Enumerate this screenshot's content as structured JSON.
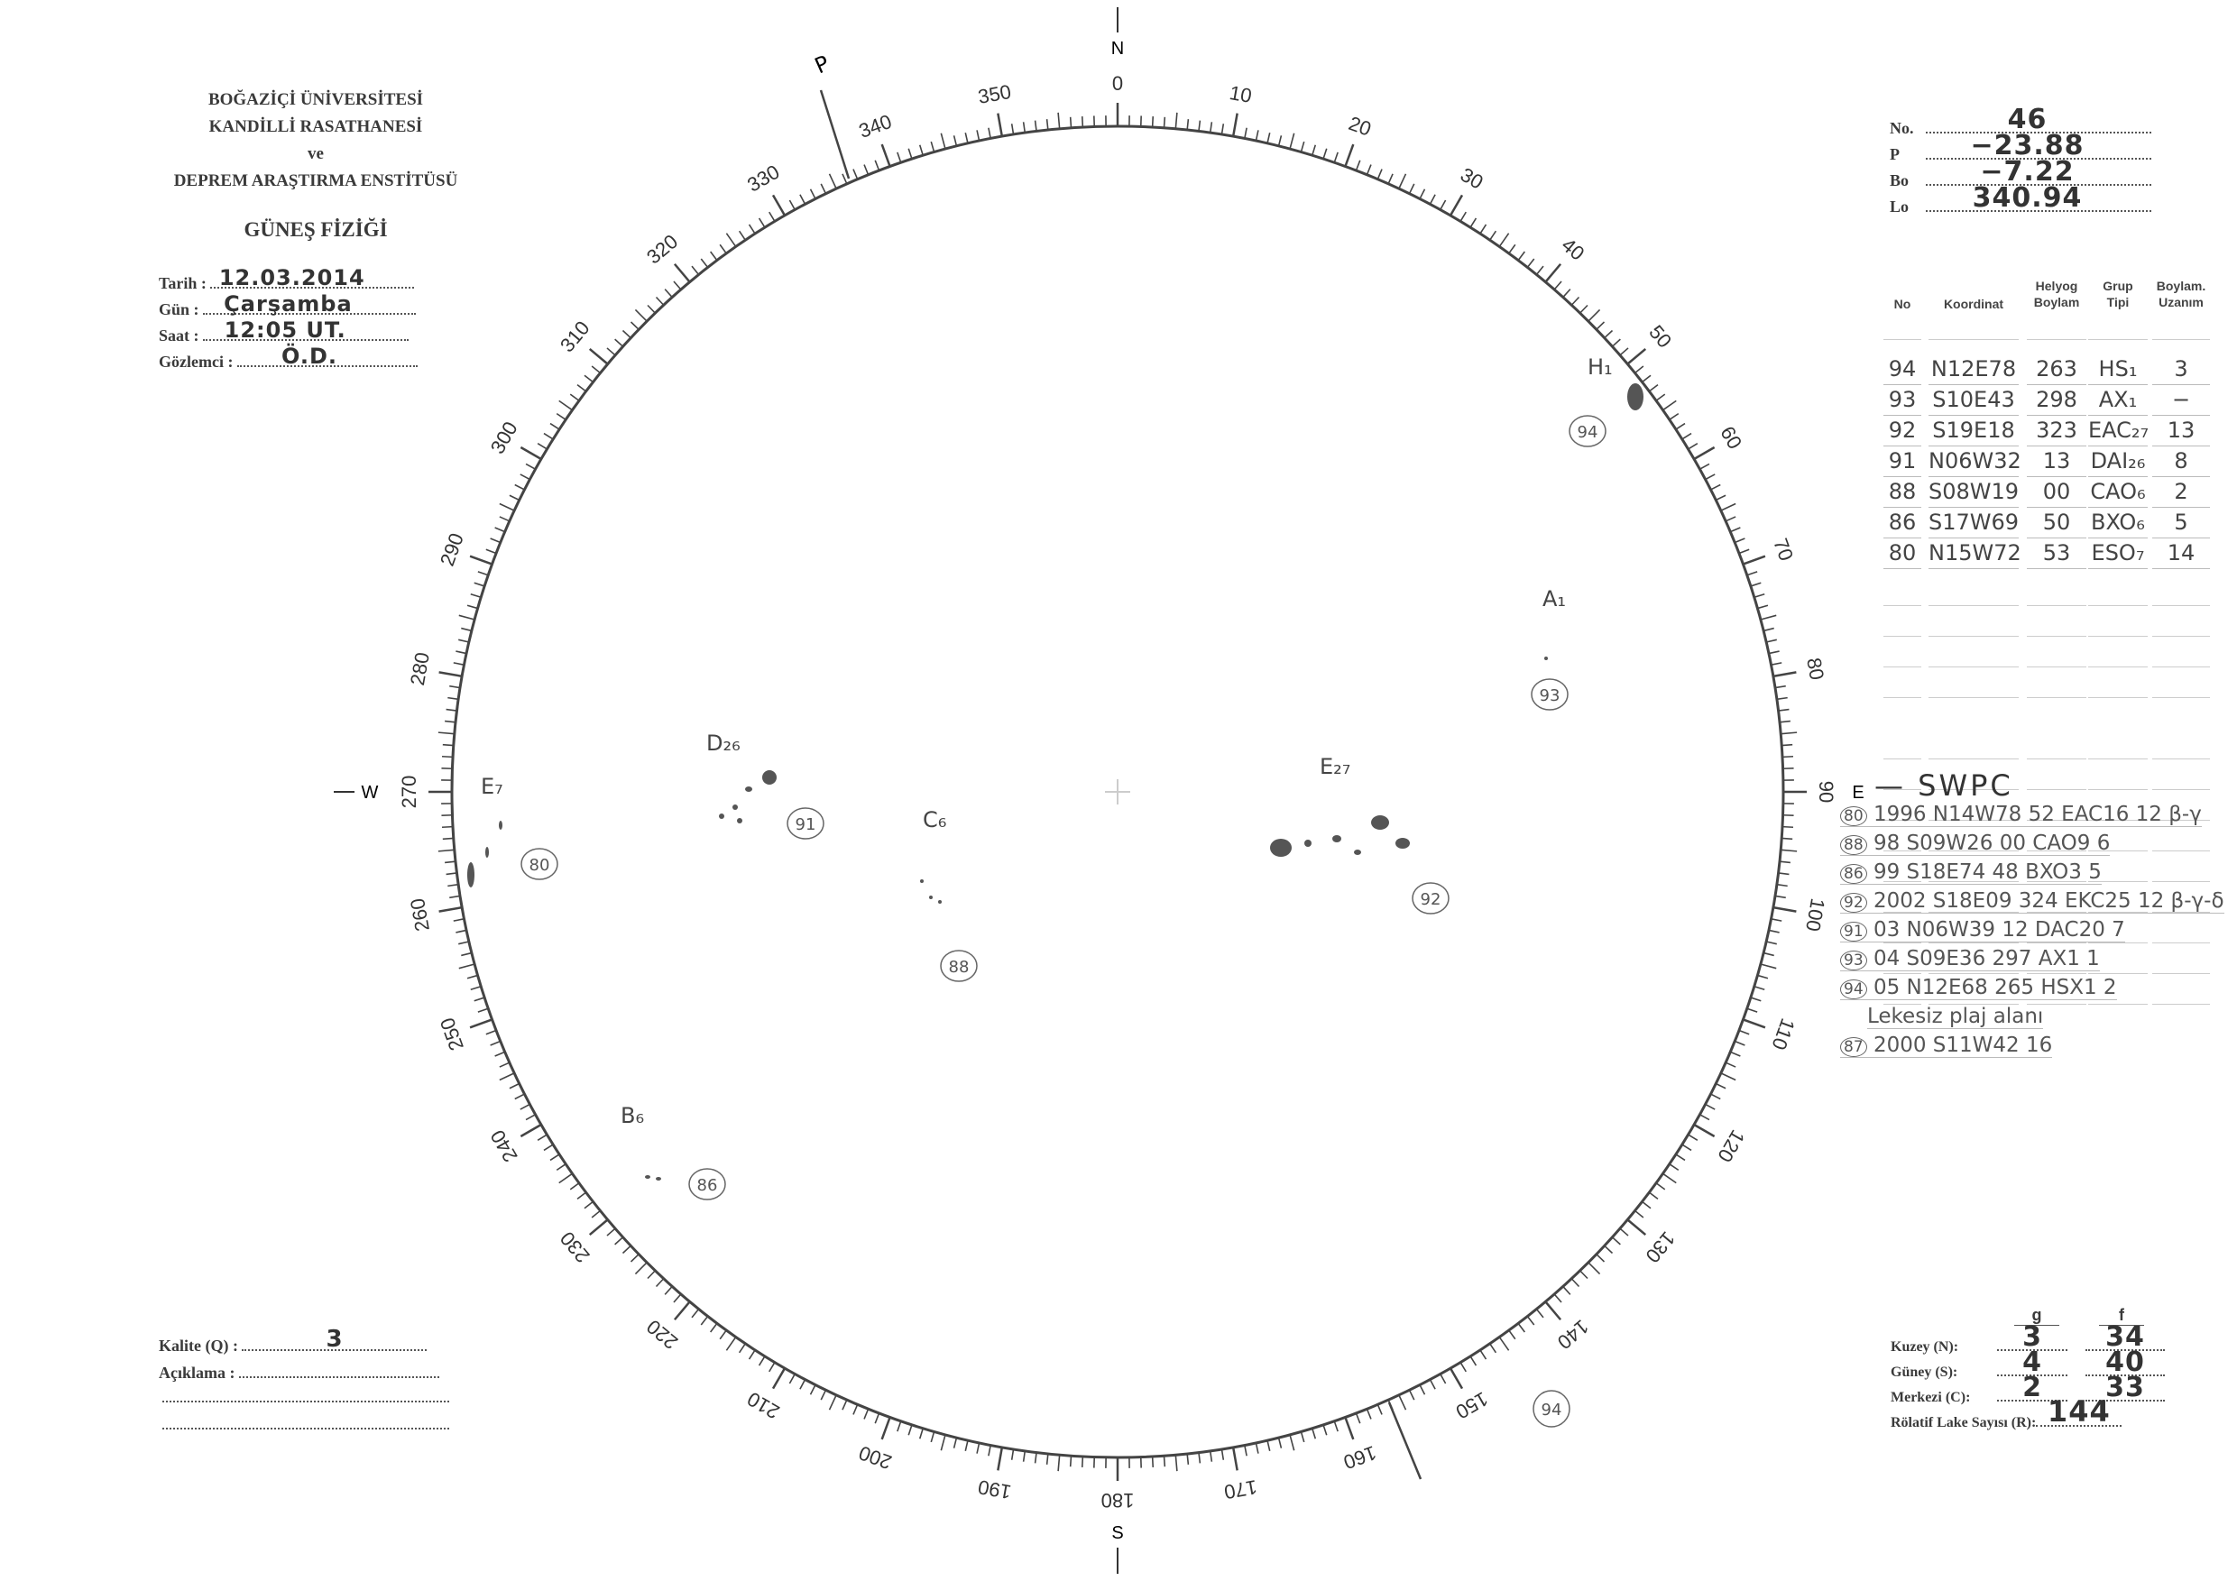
{
  "header": {
    "lines": [
      "BOĞAZİÇİ ÜNİVERSİTESİ",
      "KANDİLLİ RASATHANESİ",
      "ve",
      "DEPREM ARAŞTIRMA ENSTİTÜSÜ"
    ],
    "title": "GÜNEŞ FİZİĞİ"
  },
  "info": [
    {
      "label": "Tarih :",
      "value": "12.03.2014"
    },
    {
      "label": "Gün :",
      "value": "Çarşamba"
    },
    {
      "label": "Saat :",
      "value": "12:05 UT."
    },
    {
      "label": "Gözlemci :",
      "value": "Ö.D."
    }
  ],
  "params": [
    {
      "label": "No.",
      "value": "46"
    },
    {
      "label": "P",
      "value": "−23.88"
    },
    {
      "label": "Bo",
      "value": "−7.22"
    },
    {
      "label": "Lo",
      "value": "340.94"
    }
  ],
  "table": {
    "headers": [
      "No",
      "Koordinat",
      "Helyog\nBoylam",
      "Grup\nTipi",
      "Boylam.\nUzanım"
    ],
    "rows": [
      [
        "94",
        "N12E78",
        "263",
        "HS₁",
        "3"
      ],
      [
        "93",
        "S10E43",
        "298",
        "AX₁",
        "−"
      ],
      [
        "92",
        "S19E18",
        "323",
        "EAC₂₇",
        "13"
      ],
      [
        "91",
        "N06W32",
        "13",
        "DAI₂₆",
        "8"
      ],
      [
        "88",
        "S08W19",
        "00",
        "CAO₆",
        "2"
      ],
      [
        "86",
        "S17W69",
        "50",
        "BXO₆",
        "5"
      ],
      [
        "80",
        "N15W72",
        "53",
        "ESO₇",
        "14"
      ]
    ]
  },
  "swpc": {
    "title": "SWPC",
    "rows": [
      {
        "ref": "80",
        "text": "1996  N14W78  52  EAC16  12 β-γ"
      },
      {
        "ref": "88",
        "text": "98  S09W26  00  CAO9  6"
      },
      {
        "ref": "86",
        "text": "99  S18E74  48  BXO3  5"
      },
      {
        "ref": "92",
        "text": "2002  S18E09  324  EKC25  12 β-γ-δ"
      },
      {
        "ref": "91",
        "text": "03  N06W39  12  DAC20  7"
      },
      {
        "ref": "93",
        "text": "04  S09E36  297  AX1  1"
      },
      {
        "ref": "94",
        "text": "05  N12E68  265  HSX1  2"
      },
      {
        "ref": "",
        "text": "Lekesiz plaj alanı"
      },
      {
        "ref": "87",
        "text": "2000  S11W42  16"
      }
    ]
  },
  "quality": {
    "label": "Kalite (Q) :",
    "value": "3",
    "comment_label": "Açıklama :"
  },
  "counts": {
    "col_g": "g",
    "col_f": "f",
    "rows": [
      {
        "label": "Kuzey (N):",
        "g": "3",
        "f": "34"
      },
      {
        "label": "Güney (S):",
        "g": "4",
        "f": "40"
      },
      {
        "label": "Merkezi (C):",
        "g": "2",
        "f": "33"
      }
    ],
    "r_label": "Rölatif Lake Sayısı (R):",
    "r_value": "144"
  },
  "disk": {
    "north": "N",
    "south": "S",
    "east": "E",
    "west": "W",
    "axis_label": "P",
    "scale_labels": [
      "0",
      "10",
      "20",
      "30",
      "40",
      "50",
      "60",
      "70",
      "80",
      "90",
      "100",
      "110",
      "120",
      "130",
      "140",
      "150",
      "160",
      "170",
      "180",
      "190",
      "200",
      "210",
      "220",
      "230",
      "240",
      "250",
      "260",
      "270",
      "280",
      "290",
      "300",
      "310",
      "320",
      "330",
      "340",
      "350"
    ],
    "groups": [
      {
        "label": "H₁",
        "no": "94"
      },
      {
        "label": "A₁",
        "no": "93"
      },
      {
        "label": "E₂₇",
        "no": "92"
      },
      {
        "label": "D₂₆",
        "no": "91"
      },
      {
        "label": "C₆",
        "no": "88"
      },
      {
        "label": "B₆",
        "no": "86"
      },
      {
        "label": "E₇",
        "no": "80"
      }
    ],
    "extra_circle": "94"
  }
}
